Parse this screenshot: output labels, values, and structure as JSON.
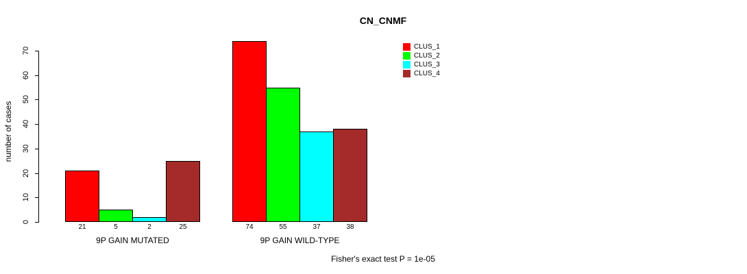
{
  "title": "CN_CNMF",
  "footer": "Fisher's exact test P = 1e-05",
  "chart_data": {
    "type": "bar",
    "title": "CN_CNMF",
    "xlabel": "",
    "ylabel": "number of cases",
    "ylim": [
      0,
      70
    ],
    "yticks": [
      0,
      10,
      20,
      30,
      40,
      50,
      60,
      70
    ],
    "grid": false,
    "legend_position": "top-right",
    "show_bar_values": true,
    "categories": [
      "9P GAIN MUTATED",
      "9P GAIN WILD-TYPE"
    ],
    "series": [
      {
        "name": "CLUS_1",
        "color": "#FF0000",
        "values": [
          21,
          74
        ]
      },
      {
        "name": "CLUS_2",
        "color": "#00FF00",
        "values": [
          5,
          55
        ]
      },
      {
        "name": "CLUS_3",
        "color": "#00FFFF",
        "values": [
          2,
          37
        ]
      },
      {
        "name": "CLUS_4",
        "color": "#A52A2A",
        "values": [
          25,
          38
        ]
      }
    ],
    "annotation": "Fisher's exact test P = 1e-05"
  }
}
